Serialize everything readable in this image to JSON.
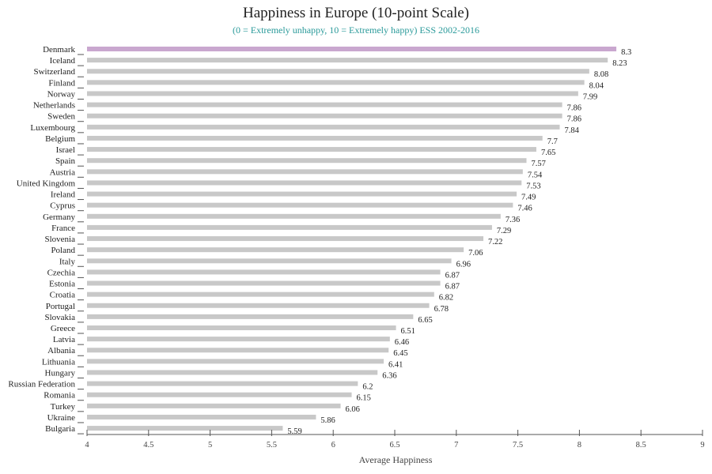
{
  "colors": {
    "bar": "#c8c8c8",
    "highlight": "#c9a7cf",
    "subtitle": "#2a9a9a",
    "axis": "#555555",
    "text": "#222222"
  },
  "chart_data": {
    "type": "bar",
    "orientation": "horizontal",
    "title": "Happiness in Europe (10-point Scale)",
    "subtitle": "(0 = Extremely unhappy, 10 = Extremely happy) ESS 2002-2016",
    "xlabel": "Average Happiness",
    "ylabel": "",
    "xlim": [
      4,
      9
    ],
    "xticks": [
      "4",
      "4.5",
      "5",
      "5.5",
      "6",
      "6.5",
      "7",
      "7.5",
      "8",
      "8.5",
      "9"
    ],
    "highlight_category": "Denmark",
    "grid": false,
    "categories": [
      "Denmark",
      "Iceland",
      "Switzerland",
      "Finland",
      "Norway",
      "Netherlands",
      "Sweden",
      "Luxembourg",
      "Belgium",
      "Israel",
      "Spain",
      "Austria",
      "United Kingdom",
      "Ireland",
      "Cyprus",
      "Germany",
      "France",
      "Slovenia",
      "Poland",
      "Italy",
      "Czechia",
      "Estonia",
      "Croatia",
      "Portugal",
      "Slovakia",
      "Greece",
      "Latvia",
      "Albania",
      "Lithuania",
      "Hungary",
      "Russian Federation",
      "Romania",
      "Turkey",
      "Ukraine",
      "Bulgaria"
    ],
    "values": [
      8.3,
      8.23,
      8.08,
      8.04,
      7.99,
      7.86,
      7.86,
      7.84,
      7.7,
      7.65,
      7.57,
      7.54,
      7.53,
      7.49,
      7.46,
      7.36,
      7.29,
      7.22,
      7.06,
      6.96,
      6.87,
      6.87,
      6.82,
      6.78,
      6.65,
      6.51,
      6.46,
      6.45,
      6.41,
      6.36,
      6.2,
      6.15,
      6.06,
      5.86,
      5.59
    ],
    "value_labels": [
      "8.3",
      "8.23",
      "8.08",
      "8.04",
      "7.99",
      "7.86",
      "7.86",
      "7.84",
      "7.7",
      "7.65",
      "7.57",
      "7.54",
      "7.53",
      "7.49",
      "7.46",
      "7.36",
      "7.29",
      "7.22",
      "7.06",
      "6.96",
      "6.87",
      "6.87",
      "6.82",
      "6.78",
      "6.65",
      "6.51",
      "6.46",
      "6.45",
      "6.41",
      "6.36",
      "6.2",
      "6.15",
      "6.06",
      "5.86",
      "5.59"
    ]
  }
}
